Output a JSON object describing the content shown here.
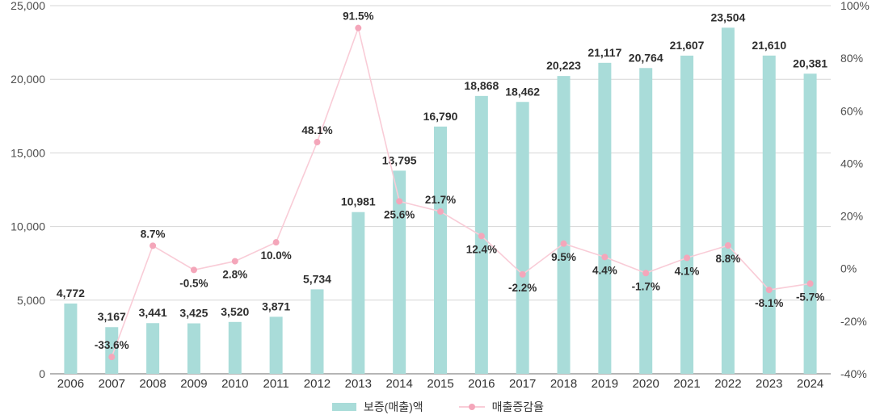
{
  "chart_data": {
    "type": "combo-bar-line",
    "title": "",
    "categories": [
      "2006",
      "2007",
      "2008",
      "2009",
      "2010",
      "2011",
      "2012",
      "2013",
      "2014",
      "2015",
      "2016",
      "2017",
      "2018",
      "2019",
      "2020",
      "2021",
      "2022",
      "2023",
      "2024"
    ],
    "series": [
      {
        "name": "보증(매출)액",
        "type": "bar",
        "axis": "left",
        "color": "#a9dcd9",
        "values": [
          4772,
          3167,
          3441,
          3425,
          3520,
          3871,
          5734,
          10981,
          13795,
          16790,
          18868,
          18462,
          20223,
          21117,
          20764,
          21607,
          23504,
          21610,
          20381
        ],
        "labels": [
          "4,772",
          "3,167",
          "3,441",
          "3,425",
          "3,520",
          "3,871",
          "5,734",
          "10,981",
          "13,795",
          "16,790",
          "18,868",
          "18,462",
          "20,223",
          "21,117",
          "20,764",
          "21,607",
          "23,504",
          "21,610",
          "20,381"
        ]
      },
      {
        "name": "매출증감율",
        "type": "line",
        "axis": "right",
        "color": "#f9ccd7",
        "point_color": "#f4a6ba",
        "values": [
          null,
          -33.6,
          8.7,
          -0.5,
          2.8,
          10.0,
          48.1,
          91.5,
          25.6,
          21.7,
          12.4,
          -2.2,
          9.5,
          4.4,
          -1.7,
          4.1,
          8.8,
          -8.1,
          -5.7
        ],
        "labels": [
          null,
          "-33.6%",
          "8.7%",
          "-0.5%",
          "2.8%",
          "10.0%",
          "48.1%",
          "91.5%",
          "25.6%",
          "21.7%",
          "12.4%",
          "-2.2%",
          "9.5%",
          "4.4%",
          "-1.7%",
          "4.1%",
          "8.8%",
          "-8.1%",
          "-5.7%"
        ],
        "label_positions": [
          null,
          "above",
          "above",
          "below",
          "below",
          "below",
          "above",
          "above",
          "below",
          "above",
          "below",
          "below",
          "below",
          "below",
          "below",
          "below",
          "below",
          "below",
          "below"
        ]
      }
    ],
    "left_axis": {
      "min": 0,
      "max": 25000,
      "step": 5000,
      "tick_labels": [
        "0",
        "5,000",
        "10,000",
        "15,000",
        "20,000",
        "25,000"
      ]
    },
    "right_axis": {
      "min": -40,
      "max": 100,
      "step": 20,
      "tick_labels": [
        "-40%",
        "-20%",
        "0%",
        "20%",
        "40%",
        "60%",
        "80%",
        "100%"
      ]
    },
    "grid": true,
    "legend_position": "bottom",
    "colors": {
      "grid_line": "#d6d6d6",
      "zero_line": "#b5b5b5",
      "axis_text": "#4d4d4d",
      "category_text": "#333333",
      "data_label_text": "#2e2e2e"
    }
  }
}
